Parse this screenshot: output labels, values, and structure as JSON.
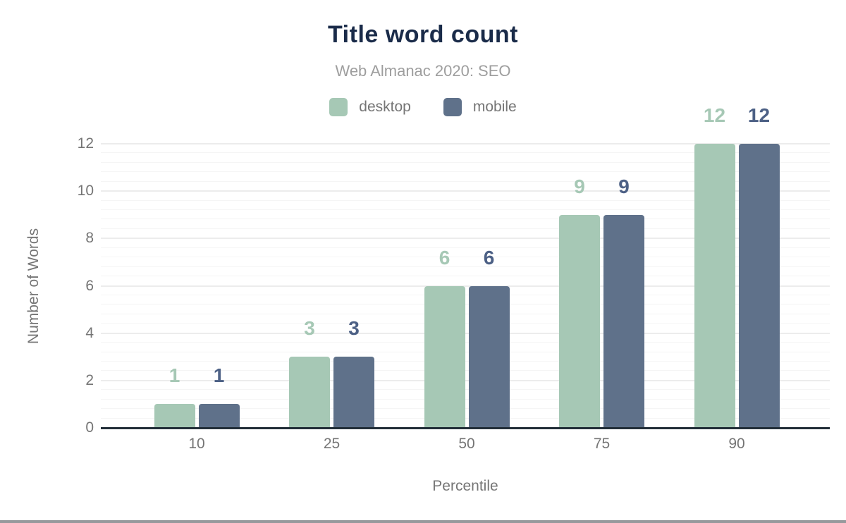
{
  "chart_data": {
    "type": "bar",
    "title": "Title word count",
    "subtitle": "Web Almanac 2020: SEO",
    "categories": [
      "10",
      "25",
      "50",
      "75",
      "90"
    ],
    "series": [
      {
        "name": "desktop",
        "color": "#a6c8b5",
        "label_color": "#a6c8b5",
        "values": [
          1,
          3,
          6,
          9,
          12
        ]
      },
      {
        "name": "mobile",
        "color": "#5f718a",
        "label_color": "#4c6085",
        "values": [
          1,
          3,
          6,
          9,
          12
        ]
      }
    ],
    "xlabel": "Percentile",
    "ylabel": "Number of Words",
    "ylim": [
      0,
      12
    ],
    "yticks": [
      0,
      2,
      4,
      6,
      8,
      10,
      12
    ],
    "minor_grid_step": 0.4,
    "grid": "horizontal, major + minor, light gray",
    "legend_position": "top-center",
    "data_labels": "above bars, colored per series"
  },
  "colors": {
    "title": "#1a2b49",
    "subtitle": "#9e9e9e",
    "axis_text": "#757575",
    "axis_line": "#222e38",
    "gridline_major": "#ececec",
    "gridline_minor": "#f5f5f5",
    "background": "#ffffff",
    "bottom_divider": "#97999c"
  }
}
